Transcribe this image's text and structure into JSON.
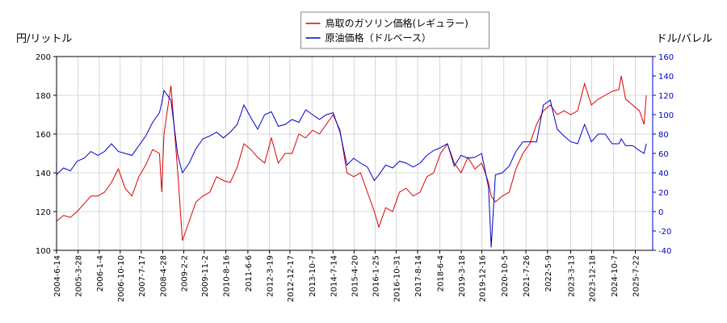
{
  "chart_data": {
    "type": "line",
    "ylabel": "円/リットル",
    "y2label": "ドル/バレル",
    "x": [
      "2004-06-14",
      "2004-09-15",
      "2004-12-15",
      "2005-03-15",
      "2005-06-15",
      "2005-09-15",
      "2005-12-15",
      "2006-03-15",
      "2006-06-15",
      "2006-09-15",
      "2006-12-15",
      "2007-03-15",
      "2007-06-15",
      "2007-09-15",
      "2007-12-15",
      "2008-03-15",
      "2008-04-15",
      "2008-05-15",
      "2008-08-15",
      "2008-11-15",
      "2009-01-15",
      "2009-04-15",
      "2009-07-15",
      "2009-10-15",
      "2010-01-15",
      "2010-04-15",
      "2010-07-15",
      "2010-10-15",
      "2011-01-15",
      "2011-04-15",
      "2011-07-15",
      "2011-10-15",
      "2012-01-15",
      "2012-04-15",
      "2012-07-15",
      "2012-10-15",
      "2013-01-15",
      "2013-04-15",
      "2013-07-15",
      "2013-10-15",
      "2014-01-15",
      "2014-04-15",
      "2014-07-15",
      "2014-10-15",
      "2015-01-15",
      "2015-04-15",
      "2015-07-15",
      "2015-10-15",
      "2016-01-15",
      "2016-03-15",
      "2016-06-15",
      "2016-09-15",
      "2016-12-15",
      "2017-03-15",
      "2017-06-15",
      "2017-09-15",
      "2017-12-15",
      "2018-03-15",
      "2018-06-15",
      "2018-09-15",
      "2018-12-15",
      "2019-03-15",
      "2019-06-15",
      "2019-09-15",
      "2019-12-15",
      "2020-03-15",
      "2020-04-20",
      "2020-06-15",
      "2020-09-15",
      "2020-12-15",
      "2021-03-15",
      "2021-06-15",
      "2021-09-15",
      "2021-12-15",
      "2022-03-15",
      "2022-06-15",
      "2022-09-15",
      "2022-12-15",
      "2023-03-15",
      "2023-06-15",
      "2023-09-15",
      "2023-12-15",
      "2024-03-15",
      "2024-06-15",
      "2024-09-15",
      "2024-12-15",
      "2025-01-15",
      "2025-03-15",
      "2025-06-15",
      "2025-09-15",
      "2025-11-15",
      "2025-12-15"
    ],
    "series": [
      {
        "name": "鳥取のガソリン価格(レギュラー)",
        "color": "#dd0000",
        "values": [
          115,
          118,
          117,
          120,
          124,
          128,
          128,
          130,
          135,
          142,
          132,
          128,
          138,
          144,
          152,
          150,
          130,
          160,
          185,
          140,
          105,
          115,
          125,
          128,
          130,
          138,
          136,
          135,
          143,
          155,
          152,
          148,
          145,
          158,
          145,
          150,
          150,
          160,
          158,
          162,
          160,
          165,
          170,
          162,
          140,
          138,
          140,
          130,
          120,
          112,
          122,
          120,
          130,
          132,
          128,
          130,
          138,
          140,
          150,
          155,
          145,
          140,
          148,
          142,
          145,
          135,
          128,
          125,
          128,
          130,
          142,
          150,
          155,
          165,
          172,
          175,
          170,
          172,
          170,
          172,
          186,
          175,
          178,
          180,
          182,
          183,
          190,
          178,
          175,
          172,
          165,
          180
        ]
      },
      {
        "name": "原油価格（ドルベース）",
        "color": "#0000cc",
        "axis": "y2",
        "values": [
          38,
          45,
          42,
          52,
          55,
          62,
          58,
          62,
          70,
          62,
          60,
          58,
          68,
          78,
          92,
          102,
          112,
          125,
          115,
          58,
          40,
          50,
          65,
          75,
          78,
          82,
          76,
          82,
          90,
          110,
          97,
          85,
          100,
          103,
          88,
          90,
          95,
          92,
          105,
          100,
          95,
          100,
          102,
          82,
          48,
          55,
          50,
          46,
          32,
          38,
          48,
          45,
          52,
          50,
          46,
          50,
          58,
          63,
          66,
          70,
          47,
          58,
          55,
          56,
          60,
          25,
          -37,
          38,
          40,
          47,
          62,
          72,
          72,
          72,
          110,
          115,
          85,
          78,
          72,
          70,
          90,
          72,
          80,
          80,
          70,
          70,
          75,
          68,
          68,
          63,
          60,
          70
        ]
      }
    ],
    "xlim": [
      "2004-06-14",
      "2026-03-10"
    ],
    "xticks": [
      "2004-6-14",
      "2005-3-28",
      "2006-1-4",
      "2006-10-10",
      "2007-7-17",
      "2008-4-28",
      "2009-2-2",
      "2009-11-2",
      "2010-8-16",
      "2011-6-6",
      "2012-3-19",
      "2012-12-17",
      "2013-10-7",
      "2014-7-14",
      "2015-4-20",
      "2016-1-25",
      "2016-10-31",
      "2017-8-14",
      "2018-6-4",
      "2019-3-18",
      "2019-12-16",
      "2020-10-5",
      "2021-7-26",
      "2022-5-9",
      "2023-3-13",
      "2023-12-18",
      "2024-10-7",
      "2025-7-22"
    ],
    "ylim": [
      100,
      200
    ],
    "yticks": [
      100,
      120,
      140,
      160,
      180,
      200
    ],
    "y2lim": [
      -40,
      160
    ],
    "y2ticks": [
      -40,
      -20,
      0,
      20,
      40,
      60,
      80,
      100,
      120,
      140,
      160
    ],
    "grid": true,
    "legend": "upper center",
    "y2color": "#0000cc"
  }
}
